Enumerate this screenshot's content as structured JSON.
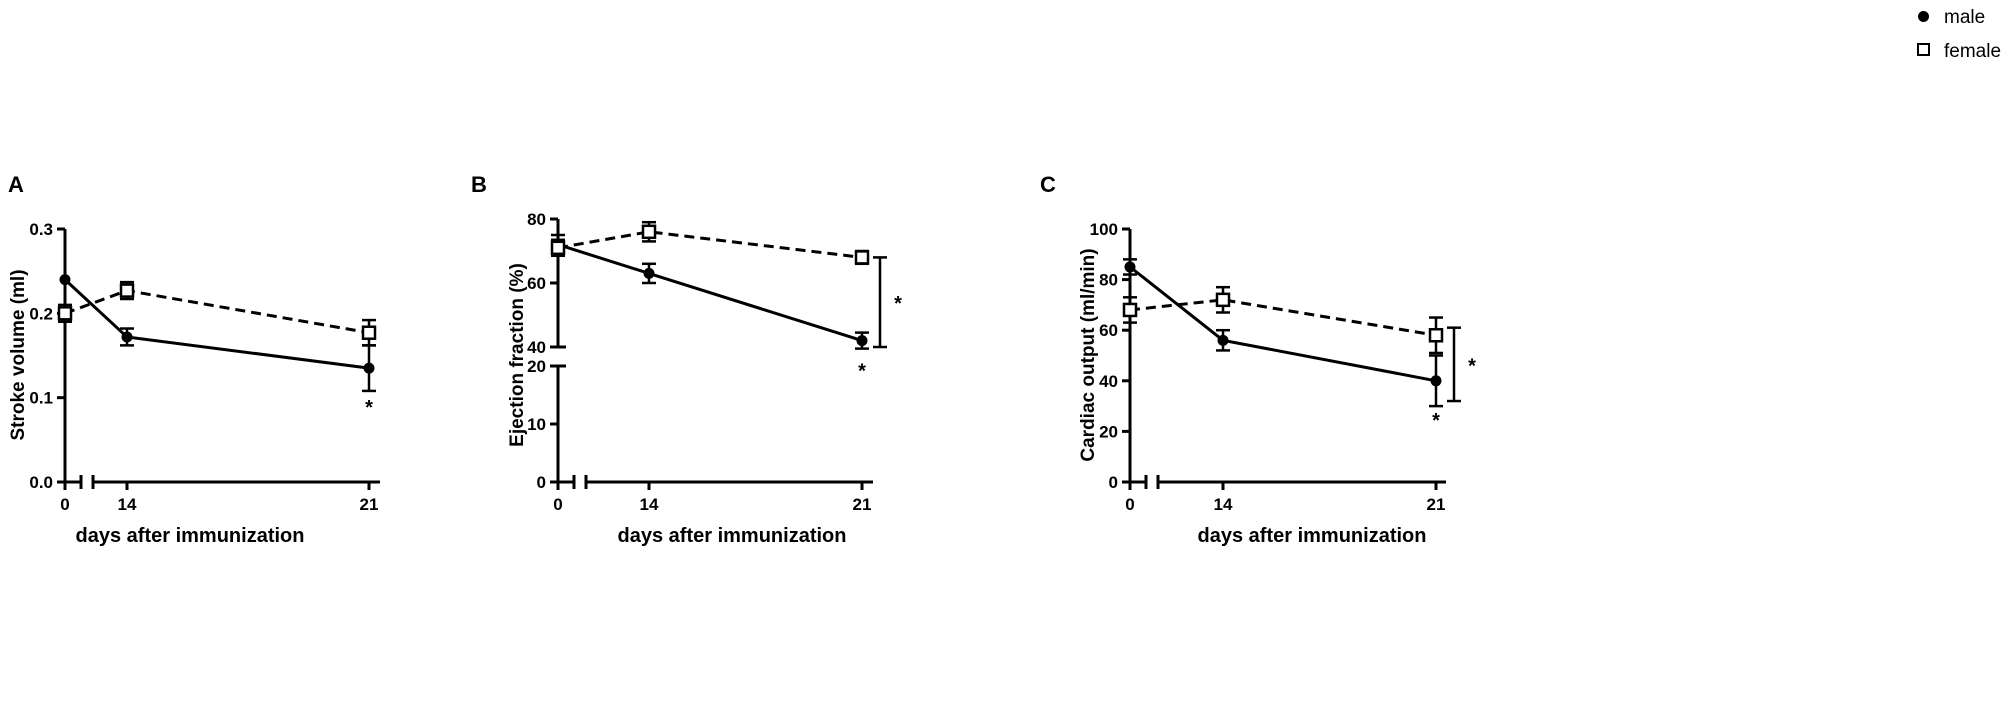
{
  "legend": {
    "male": "male",
    "female": "female"
  },
  "chart_data": [
    {
      "type": "line",
      "panel_label": "A",
      "ylabel": "Stroke volume (ml)",
      "xlabel": "days after immunization",
      "x": [
        0,
        14,
        21
      ],
      "ylim": [
        0,
        0.3
      ],
      "yticks": [
        0.0,
        0.1,
        0.2,
        0.3
      ],
      "ytick_labels": [
        "0.0",
        "0.1",
        "0.2",
        "0.3"
      ],
      "xtick_labels": [
        "0",
        "14",
        "21"
      ],
      "series": [
        {
          "name": "male",
          "values": [
            0.24,
            0.172,
            0.135
          ],
          "errors": [
            0.0,
            0.01,
            0.027
          ],
          "marker": "circle",
          "dash": "solid"
        },
        {
          "name": "female",
          "values": [
            0.2,
            0.227,
            0.177
          ],
          "errors": [
            0.01,
            0.01,
            0.015
          ],
          "marker": "square",
          "dash": "dashed"
        }
      ],
      "annotations": [
        {
          "text": "*",
          "x": 21,
          "y": 0.09
        }
      ],
      "bracket": null
    },
    {
      "type": "line",
      "panel_label": "B",
      "ylabel": "Ejection fraction (%)",
      "xlabel": "days after immunization",
      "x": [
        0,
        14,
        21
      ],
      "ylim": [
        0,
        80
      ],
      "axis_break": {
        "lower": [
          0,
          20
        ],
        "upper": [
          40,
          80
        ]
      },
      "yticks": [
        0,
        10,
        20,
        40,
        60,
        80
      ],
      "ytick_labels": [
        "0",
        "10",
        "20",
        "40",
        "60",
        "80"
      ],
      "xtick_labels": [
        "0",
        "14",
        "21"
      ],
      "series": [
        {
          "name": "male",
          "values": [
            72,
            63,
            42
          ],
          "errors": [
            3,
            3,
            2.5
          ],
          "marker": "circle",
          "dash": "solid"
        },
        {
          "name": "female",
          "values": [
            71,
            76,
            68
          ],
          "errors": [
            2.5,
            3,
            2
          ],
          "marker": "square",
          "dash": "dashed"
        }
      ],
      "annotations": [
        {
          "text": "*",
          "x": 21,
          "y": 33
        }
      ],
      "bracket": {
        "y_from": 40,
        "y_to": 68,
        "text": "*"
      }
    },
    {
      "type": "line",
      "panel_label": "C",
      "ylabel": "Cardiac output (ml/min)",
      "xlabel": "days after immunization",
      "x": [
        0,
        14,
        21
      ],
      "ylim": [
        0,
        100
      ],
      "yticks": [
        0,
        20,
        40,
        60,
        80,
        100
      ],
      "ytick_labels": [
        "0",
        "20",
        "40",
        "60",
        "80",
        "100"
      ],
      "xtick_labels": [
        "0",
        "14",
        "21"
      ],
      "series": [
        {
          "name": "male",
          "values": [
            85,
            56,
            40
          ],
          "errors": [
            3,
            4,
            10
          ],
          "marker": "circle",
          "dash": "solid"
        },
        {
          "name": "female",
          "values": [
            68,
            72,
            58
          ],
          "errors": [
            5,
            5,
            7
          ],
          "marker": "square",
          "dash": "dashed"
        }
      ],
      "annotations": [
        {
          "text": "*",
          "x": 21,
          "y": 25
        }
      ],
      "bracket": {
        "y_from": 32,
        "y_to": 61,
        "text": "*"
      }
    }
  ]
}
